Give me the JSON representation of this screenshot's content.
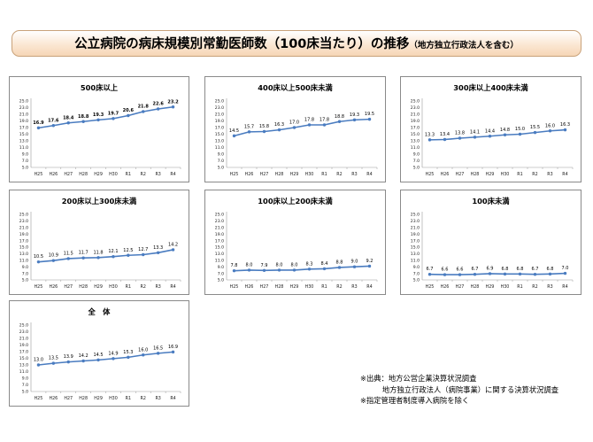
{
  "header": {
    "title": "公立病院の病床規模別常勤医師数（100床当たり）の推移",
    "subtitle": "（地方独立行政法人を含む）"
  },
  "notes": [
    "※出典：地方公営企業決算状況調査",
    "　　　地方独立行政法人（病院事業）に関する決算状況調査",
    "※指定管理者制度導入病院を除く"
  ],
  "chart_data": [
    {
      "id": "c500",
      "type": "line",
      "title": "500床以上",
      "categories": [
        "H25",
        "H26",
        "H27",
        "H28",
        "H29",
        "H30",
        "R1",
        "R2",
        "R3",
        "R4"
      ],
      "values": [
        16.9,
        17.6,
        18.4,
        18.8,
        19.3,
        19.7,
        20.6,
        21.8,
        22.6,
        23.2
      ],
      "yticks": [
        "25.0",
        "23.0",
        "21.0",
        "19.0",
        "17.0",
        "15.0",
        "13.0",
        "11.0",
        "9.0",
        "7.0",
        "5.0"
      ],
      "ylim": [
        5,
        25
      ],
      "labels_bold": true,
      "line_color": "#4a7cc0"
    },
    {
      "id": "c400",
      "type": "line",
      "title": "400床以上500床未満",
      "categories": [
        "H25",
        "H26",
        "H27",
        "H28",
        "H29",
        "H30",
        "R1",
        "R2",
        "R3",
        "R4"
      ],
      "values": [
        14.5,
        15.7,
        15.8,
        16.3,
        17.0,
        17.8,
        17.8,
        18.8,
        19.3,
        19.5
      ],
      "yticks": [
        "25.0",
        "23.0",
        "21.0",
        "19.0",
        "17.0",
        "15.0",
        "13.0",
        "11.0",
        "9.0",
        "7.0",
        "5.0"
      ],
      "ylim": [
        5,
        25
      ],
      "labels_bold": false,
      "line_color": "#4a7cc0"
    },
    {
      "id": "c300",
      "type": "line",
      "title": "300床以上400床未満",
      "categories": [
        "H25",
        "H26",
        "H27",
        "H28",
        "H29",
        "H30",
        "R1",
        "R2",
        "R3",
        "R4"
      ],
      "values": [
        13.3,
        13.4,
        13.8,
        14.1,
        14.4,
        14.8,
        15.0,
        15.5,
        16.0,
        16.3
      ],
      "yticks": [
        "25.0",
        "23.0",
        "21.0",
        "19.0",
        "17.0",
        "15.0",
        "13.0",
        "11.0",
        "9.0",
        "7.0",
        "5.0"
      ],
      "ylim": [
        5,
        25
      ],
      "labels_bold": false,
      "line_color": "#4a7cc0"
    },
    {
      "id": "c200",
      "type": "line",
      "title": "200床以上300床未満",
      "categories": [
        "H25",
        "H26",
        "H27",
        "H28",
        "H29",
        "H30",
        "R1",
        "R2",
        "R3",
        "R4"
      ],
      "values": [
        10.5,
        10.9,
        11.5,
        11.7,
        11.8,
        12.1,
        12.5,
        12.7,
        13.3,
        14.2
      ],
      "yticks": [
        "25.0",
        "23.0",
        "21.0",
        "19.0",
        "17.0",
        "15.0",
        "13.0",
        "11.0",
        "9.0",
        "7.0",
        "5.0"
      ],
      "ylim": [
        5,
        25
      ],
      "labels_bold": false,
      "line_color": "#4a7cc0"
    },
    {
      "id": "c100",
      "type": "line",
      "title": "100床以上200床未満",
      "categories": [
        "H25",
        "H26",
        "H27",
        "H28",
        "H29",
        "H30",
        "R1",
        "R2",
        "R3",
        "R4"
      ],
      "values": [
        7.8,
        8.0,
        7.9,
        8.0,
        8.0,
        8.3,
        8.4,
        8.8,
        9.0,
        9.2
      ],
      "yticks": [
        "25.0",
        "23.0",
        "21.0",
        "19.0",
        "17.0",
        "15.0",
        "13.0",
        "11.0",
        "9.0",
        "7.0",
        "5.0"
      ],
      "ylim": [
        5,
        25
      ],
      "labels_bold": false,
      "line_color": "#4a7cc0"
    },
    {
      "id": "cU",
      "type": "line",
      "title": "100床未満",
      "categories": [
        "H25",
        "H26",
        "H27",
        "H28",
        "H29",
        "H30",
        "R1",
        "R2",
        "R3",
        "R4"
      ],
      "values": [
        6.7,
        6.6,
        6.6,
        6.7,
        6.9,
        6.8,
        6.8,
        6.7,
        6.8,
        7.0
      ],
      "yticks": [
        "25.0",
        "23.0",
        "21.0",
        "19.0",
        "17.0",
        "15.0",
        "13.0",
        "11.0",
        "9.0",
        "7.0",
        "5.0"
      ],
      "ylim": [
        5,
        25
      ],
      "labels_bold": false,
      "line_color": "#4a7cc0"
    },
    {
      "id": "cAll",
      "type": "line",
      "title": "全　体",
      "categories": [
        "H25",
        "H26",
        "H27",
        "H28",
        "H29",
        "H30",
        "R1",
        "R2",
        "R3",
        "R4"
      ],
      "values": [
        13.0,
        13.5,
        13.9,
        14.2,
        14.5,
        14.9,
        15.3,
        16.0,
        16.5,
        16.9
      ],
      "yticks": [
        "25.0",
        "23.0",
        "21.0",
        "19.0",
        "17.0",
        "15.0",
        "13.0",
        "11.0",
        "9.0",
        "7.0",
        "5.0"
      ],
      "ylim": [
        5,
        25
      ],
      "labels_bold": false,
      "line_color": "#4a7cc0"
    }
  ]
}
